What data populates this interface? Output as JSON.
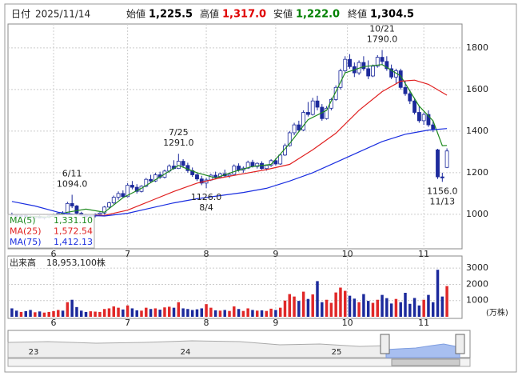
{
  "header": {
    "date_label": "日付",
    "date": "2025/11/14",
    "items": [
      {
        "label": "始値",
        "value": "1,225.5",
        "color": "#000000"
      },
      {
        "label": "高値",
        "value": "1,317.0",
        "color": "#e00000"
      },
      {
        "label": "安値",
        "value": "1,222.0",
        "color": "#008000"
      },
      {
        "label": "終値",
        "value": "1,304.5",
        "color": "#000000"
      }
    ]
  },
  "chart_data": [
    {
      "type": "candlestick",
      "ylim": [
        838,
        1915
      ],
      "yticks": [
        1000,
        1200,
        1400,
        1600,
        1800
      ],
      "grid": true,
      "xlim": [
        -0.5,
        94.5
      ],
      "xticks": [
        {
          "value": 9,
          "label": "6"
        },
        {
          "value": 25,
          "label": "7"
        },
        {
          "value": 42,
          "label": "8"
        },
        {
          "value": 57,
          "label": "9"
        },
        {
          "value": 72.5,
          "label": "10"
        },
        {
          "value": 89,
          "label": "11"
        }
      ],
      "up_color": "#ffffff",
      "down_color": "#1c2a9c",
      "outline_color": "#1c2a9c",
      "candles": [
        [
          1000,
          1008,
          990,
          995
        ],
        [
          995,
          1000,
          985,
          990
        ],
        [
          990,
          998,
          982,
          994
        ],
        [
          994,
          1000,
          985,
          988
        ],
        [
          988,
          995,
          978,
          984
        ],
        [
          984,
          992,
          976,
          990
        ],
        [
          990,
          996,
          980,
          982
        ],
        [
          982,
          990,
          975,
          986
        ],
        [
          986,
          995,
          980,
          992
        ],
        [
          992,
          1002,
          985,
          998
        ],
        [
          998,
          1010,
          990,
          1004
        ],
        [
          1004,
          1015,
          995,
          1000
        ],
        [
          1000,
          1060,
          998,
          1052
        ],
        [
          1052,
          1094,
          1030,
          1040
        ],
        [
          1040,
          1045,
          1000,
          1005
        ],
        [
          1005,
          1012,
          990,
          996
        ],
        [
          996,
          1002,
          982,
          988
        ],
        [
          988,
          996,
          975,
          992
        ],
        [
          992,
          1004,
          985,
          1000
        ],
        [
          1000,
          1010,
          992,
          1006
        ],
        [
          1006,
          1040,
          1000,
          1035
        ],
        [
          1035,
          1060,
          1028,
          1055
        ],
        [
          1055,
          1090,
          1048,
          1082
        ],
        [
          1082,
          1110,
          1070,
          1100
        ],
        [
          1100,
          1115,
          1078,
          1085
        ],
        [
          1085,
          1150,
          1082,
          1140
        ],
        [
          1140,
          1160,
          1120,
          1130
        ],
        [
          1130,
          1145,
          1100,
          1110
        ],
        [
          1110,
          1140,
          1105,
          1135
        ],
        [
          1135,
          1175,
          1130,
          1168
        ],
        [
          1168,
          1190,
          1150,
          1160
        ],
        [
          1160,
          1200,
          1155,
          1190
        ],
        [
          1190,
          1205,
          1170,
          1178
        ],
        [
          1178,
          1215,
          1172,
          1208
        ],
        [
          1208,
          1240,
          1200,
          1232
        ],
        [
          1232,
          1260,
          1215,
          1220
        ],
        [
          1220,
          1291,
          1218,
          1255
        ],
        [
          1255,
          1265,
          1225,
          1235
        ],
        [
          1235,
          1248,
          1200,
          1210
        ],
        [
          1210,
          1225,
          1180,
          1190
        ],
        [
          1190,
          1200,
          1160,
          1170
        ],
        [
          1170,
          1185,
          1140,
          1150
        ],
        [
          1150,
          1175,
          1126,
          1165
        ],
        [
          1165,
          1195,
          1160,
          1188
        ],
        [
          1188,
          1205,
          1170,
          1178
        ],
        [
          1178,
          1200,
          1172,
          1195
        ],
        [
          1195,
          1215,
          1180,
          1185
        ],
        [
          1185,
          1200,
          1175,
          1192
        ],
        [
          1192,
          1240,
          1190,
          1232
        ],
        [
          1232,
          1245,
          1205,
          1212
        ],
        [
          1212,
          1230,
          1200,
          1222
        ],
        [
          1222,
          1258,
          1218,
          1250
        ],
        [
          1250,
          1262,
          1225,
          1230
        ],
        [
          1230,
          1250,
          1220,
          1245
        ],
        [
          1245,
          1255,
          1215,
          1220
        ],
        [
          1220,
          1240,
          1210,
          1235
        ],
        [
          1235,
          1265,
          1228,
          1258
        ],
        [
          1258,
          1270,
          1235,
          1242
        ],
        [
          1242,
          1290,
          1238,
          1285
        ],
        [
          1285,
          1340,
          1280,
          1330
        ],
        [
          1330,
          1400,
          1325,
          1392
        ],
        [
          1392,
          1440,
          1380,
          1430
        ],
        [
          1430,
          1450,
          1395,
          1405
        ],
        [
          1405,
          1500,
          1400,
          1490
        ],
        [
          1490,
          1540,
          1470,
          1480
        ],
        [
          1480,
          1560,
          1475,
          1545
        ],
        [
          1545,
          1570,
          1500,
          1515
        ],
        [
          1515,
          1530,
          1450,
          1460
        ],
        [
          1460,
          1520,
          1455,
          1510
        ],
        [
          1510,
          1560,
          1500,
          1552
        ],
        [
          1552,
          1620,
          1545,
          1610
        ],
        [
          1610,
          1700,
          1600,
          1690
        ],
        [
          1690,
          1760,
          1680,
          1745
        ],
        [
          1745,
          1770,
          1700,
          1710
        ],
        [
          1710,
          1730,
          1660,
          1680
        ],
        [
          1680,
          1740,
          1670,
          1730
        ],
        [
          1730,
          1760,
          1690,
          1700
        ],
        [
          1700,
          1740,
          1650,
          1665
        ],
        [
          1665,
          1720,
          1660,
          1712
        ],
        [
          1712,
          1765,
          1705,
          1755
        ],
        [
          1755,
          1790,
          1720,
          1735
        ],
        [
          1735,
          1760,
          1690,
          1700
        ],
        [
          1700,
          1720,
          1650,
          1660
        ],
        [
          1660,
          1700,
          1630,
          1690
        ],
        [
          1690,
          1700,
          1600,
          1610
        ],
        [
          1610,
          1640,
          1570,
          1580
        ],
        [
          1580,
          1600,
          1530,
          1545
        ],
        [
          1545,
          1560,
          1480,
          1490
        ],
        [
          1490,
          1520,
          1440,
          1450
        ],
        [
          1450,
          1490,
          1430,
          1480
        ],
        [
          1480,
          1500,
          1420,
          1430
        ],
        [
          1430,
          1450,
          1395,
          1410
        ],
        [
          1310,
          1315,
          1170,
          1180
        ],
        [
          1180,
          1200,
          1156,
          1175
        ],
        [
          1225.5,
          1317,
          1222,
          1304.5
        ]
      ],
      "annotations": [
        {
          "date": "6/11",
          "value": {
            "value": 1094,
            "label": "1094.0"
          }
        },
        {
          "date": "7/25",
          "value": {
            "value": 1291,
            "label": "1291.0"
          }
        },
        {
          "date": "8/4",
          "value": {
            "value": 1126,
            "label": "1126.0"
          }
        },
        {
          "date": "10/21",
          "value": {
            "value": 1790,
            "label": "1790.0"
          }
        },
        {
          "date": "11/13",
          "value": {
            "value": 1156,
            "label": "1156.0"
          }
        }
      ],
      "series": [
        {
          "name": "MA(5)",
          "color": "#1f8a1f",
          "last_label": "1,331.10",
          "x": [
            4,
            8,
            12,
            16,
            20,
            24,
            28,
            32,
            36,
            40,
            44,
            48,
            52,
            56,
            60,
            64,
            68,
            72,
            76,
            80,
            84,
            88,
            91,
            93,
            94
          ],
          "values": [
            990,
            987,
            1010,
            1025,
            1010,
            1080,
            1125,
            1180,
            1235,
            1200,
            1175,
            1205,
            1230,
            1240,
            1340,
            1455,
            1500,
            1680,
            1710,
            1720,
            1665,
            1520,
            1450,
            1330,
            1331.1
          ]
        },
        {
          "name": "MA(25)",
          "color": "#e02020",
          "last_label": "1,572.54",
          "x": [
            18,
            20,
            25,
            30,
            35,
            40,
            45,
            50,
            55,
            60,
            65,
            70,
            75,
            80,
            84,
            87,
            90,
            94
          ],
          "values": [
            995,
            995,
            1020,
            1065,
            1110,
            1150,
            1175,
            1195,
            1215,
            1240,
            1310,
            1390,
            1500,
            1590,
            1640,
            1645,
            1625,
            1572.54
          ]
        },
        {
          "name": "MA(75)",
          "color": "#1a2ee0",
          "last_label": "1,412.13",
          "x": [
            0,
            5,
            10,
            15,
            20,
            25,
            30,
            35,
            40,
            45,
            50,
            55,
            60,
            65,
            70,
            75,
            80,
            85,
            90,
            94
          ],
          "values": [
            1062,
            1040,
            1010,
            995,
            992,
            1005,
            1030,
            1055,
            1075,
            1090,
            1105,
            1125,
            1160,
            1200,
            1250,
            1300,
            1350,
            1385,
            1405,
            1412.13
          ]
        }
      ]
    },
    {
      "type": "bar",
      "title": "出来高",
      "subtitle": "18,953,100株",
      "unit": "(万株)",
      "ylim": [
        0,
        3650
      ],
      "yticks": [
        1000,
        2000,
        3000
      ],
      "up_color": "#e02828",
      "down_color": "#1c2a9c",
      "values": [
        520,
        380,
        300,
        350,
        420,
        280,
        330,
        260,
        300,
        350,
        420,
        380,
        900,
        1050,
        600,
        380,
        300,
        340,
        320,
        300,
        480,
        520,
        640,
        560,
        450,
        700,
        520,
        400,
        380,
        560,
        480,
        520,
        440,
        580,
        620,
        560,
        900,
        520,
        480,
        420,
        460,
        520,
        780,
        560,
        400,
        380,
        420,
        360,
        640,
        480,
        360,
        520,
        420,
        380,
        400,
        360,
        500,
        420,
        560,
        1000,
        1400,
        1250,
        980,
        1550,
        1100,
        1380,
        2200,
        900,
        1050,
        860,
        1500,
        1800,
        1600,
        1300,
        1120,
        900,
        1400,
        980,
        860,
        1050,
        1350,
        1150,
        820,
        1100,
        900,
        1480,
        800,
        1160,
        700,
        1050,
        1350,
        900,
        2900,
        1250,
        1895.31
      ]
    }
  ],
  "navigator": {
    "labels": [
      "23",
      "24",
      "25"
    ]
  }
}
